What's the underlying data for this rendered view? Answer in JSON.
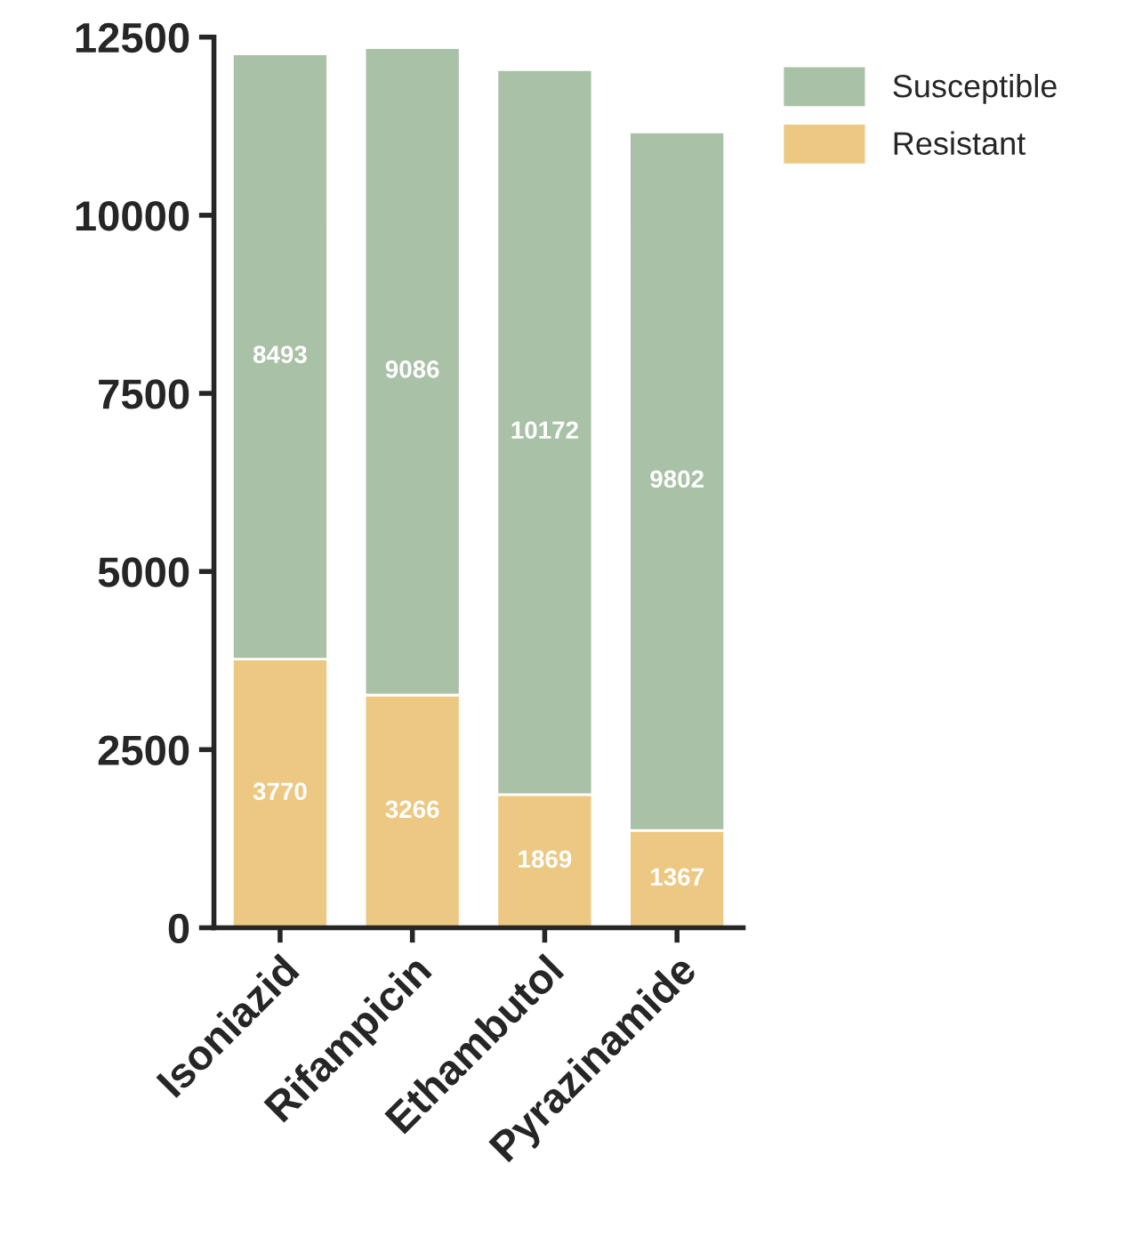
{
  "chart_data": {
    "type": "bar",
    "stacked": true,
    "categories": [
      "Isoniazid",
      "Rifampicin",
      "Ethambutol",
      "Pyrazinamide"
    ],
    "series": [
      {
        "name": "Resistant",
        "color": "#ecc882",
        "values": [
          3770,
          3266,
          1869,
          1367
        ]
      },
      {
        "name": "Susceptible",
        "color": "#a9c1a6",
        "values": [
          8493,
          9086,
          10172,
          9802
        ]
      }
    ],
    "ylim": [
      0,
      12500
    ],
    "yticks": [
      0,
      2500,
      5000,
      7500,
      10000,
      12500
    ],
    "data_labels": true,
    "legend": "top right",
    "grid": false
  }
}
